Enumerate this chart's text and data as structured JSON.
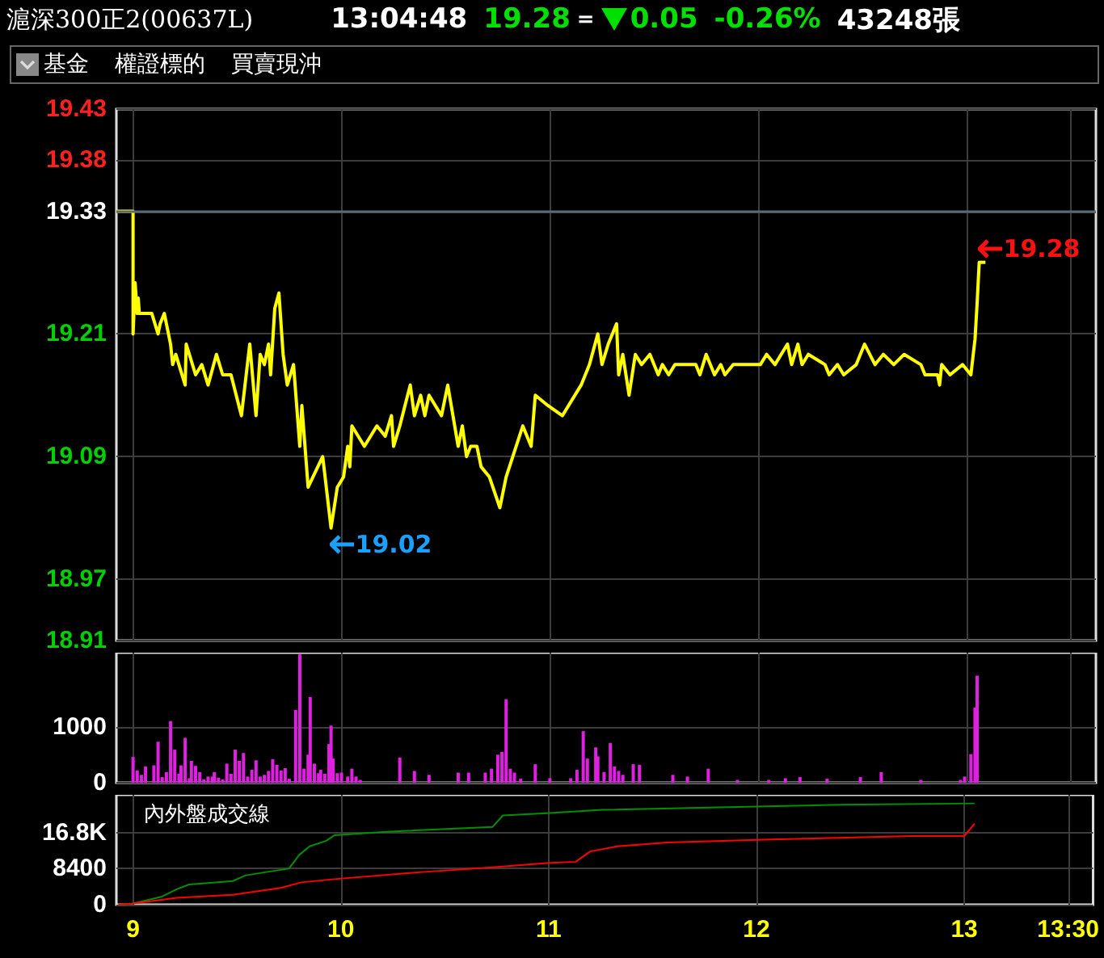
{
  "chart_data": [
    {
      "type": "line",
      "title": "滬深300正2(00637L)",
      "annotations": [
        "13:04:48",
        "19.28",
        "=",
        "0.05",
        "-0.26%",
        "43248張",
        "基金",
        "權證標的",
        "買賣現沖",
        {
          "text": "19.02",
          "x": 9.95,
          "y": 19.02
        },
        {
          "text": "19.28",
          "x": 13.06,
          "y": 19.28
        }
      ],
      "x": [
        8.92,
        9.0,
        9.0,
        9.01,
        9.02,
        9.025,
        9.03,
        9.09,
        9.12,
        9.13,
        9.15,
        9.165,
        9.18,
        9.19,
        9.205,
        9.22,
        9.25,
        9.255,
        9.27,
        9.3,
        9.33,
        9.36,
        9.4,
        9.43,
        9.47,
        9.52,
        9.56,
        9.59,
        9.61,
        9.63,
        9.65,
        9.66,
        9.68,
        9.7,
        9.72,
        9.74,
        9.77,
        9.8,
        9.81,
        9.84,
        9.91,
        9.95,
        9.98,
        10.01,
        10.03,
        10.04,
        10.05,
        10.11,
        10.17,
        10.21,
        10.24,
        10.25,
        10.28,
        10.33,
        10.35,
        10.38,
        10.4,
        10.42,
        10.48,
        10.51,
        10.56,
        10.58,
        10.6,
        10.62,
        10.65,
        10.67,
        10.71,
        10.76,
        10.79,
        10.87,
        10.91,
        10.93,
        10.99,
        11.06,
        11.15,
        11.19,
        11.23,
        11.25,
        11.28,
        11.32,
        11.33,
        11.35,
        11.38,
        11.41,
        11.44,
        11.48,
        11.52,
        11.54,
        11.57,
        11.6,
        11.7,
        11.72,
        11.75,
        11.79,
        11.82,
        11.84,
        11.88,
        12.01,
        12.04,
        12.08,
        12.14,
        12.16,
        12.19,
        12.21,
        12.24,
        12.32,
        12.34,
        12.38,
        12.41,
        12.47,
        12.51,
        12.56,
        12.6,
        12.65,
        12.7,
        12.78,
        12.8,
        12.86,
        12.87,
        12.88,
        12.92,
        12.98,
        13.02,
        13.04,
        13.05,
        13.06,
        13.09
      ],
      "values": [
        19.33,
        19.33,
        19.21,
        19.26,
        19.23,
        19.245,
        19.23,
        19.23,
        19.21,
        19.22,
        19.23,
        19.215,
        19.2,
        19.18,
        19.19,
        19.18,
        19.16,
        19.2,
        19.19,
        19.17,
        19.18,
        19.16,
        19.19,
        19.17,
        19.17,
        19.13,
        19.2,
        19.13,
        19.19,
        19.18,
        19.2,
        19.17,
        19.235,
        19.25,
        19.19,
        19.16,
        19.18,
        19.1,
        19.14,
        19.06,
        19.09,
        19.02,
        19.06,
        19.07,
        19.1,
        19.08,
        19.12,
        19.1,
        19.12,
        19.11,
        19.13,
        19.1,
        19.12,
        19.16,
        19.13,
        19.15,
        19.13,
        19.15,
        19.13,
        19.16,
        19.1,
        19.12,
        19.09,
        19.1,
        19.1,
        19.08,
        19.07,
        19.04,
        19.07,
        19.12,
        19.1,
        19.15,
        19.14,
        19.13,
        19.16,
        19.18,
        19.21,
        19.18,
        19.2,
        19.22,
        19.17,
        19.19,
        19.15,
        19.19,
        19.18,
        19.19,
        19.17,
        19.18,
        19.17,
        19.18,
        19.18,
        19.17,
        19.19,
        19.17,
        19.18,
        19.17,
        19.18,
        19.18,
        19.19,
        19.18,
        19.2,
        19.18,
        19.2,
        19.18,
        19.19,
        19.18,
        19.17,
        19.18,
        19.17,
        19.18,
        19.2,
        19.18,
        19.19,
        19.18,
        19.19,
        19.18,
        19.17,
        19.17,
        19.16,
        19.18,
        19.17,
        19.18,
        19.17,
        19.205,
        19.24,
        19.28,
        19.28
      ],
      "color": "#ffff00",
      "xlim": [
        8.92,
        13.62
      ],
      "xticks": [
        9,
        10,
        11,
        12,
        13,
        13.5
      ],
      "ylim": [
        18.91,
        19.43
      ],
      "yticks": [
        18.91,
        18.97,
        19.09,
        19.21,
        19.33,
        19.38,
        19.43
      ],
      "ref_lines": [
        {
          "axis": "y",
          "value": 19.33,
          "color": "#56687a"
        }
      ],
      "grid": true,
      "tick_labels": "y"
    },
    {
      "type": "bar",
      "x": [
        9.0,
        9.02,
        9.04,
        9.06,
        9.1,
        9.12,
        9.14,
        9.16,
        9.18,
        9.2,
        9.22,
        9.23,
        9.25,
        9.27,
        9.28,
        9.3,
        9.32,
        9.34,
        9.36,
        9.38,
        9.39,
        9.41,
        9.43,
        9.45,
        9.47,
        9.49,
        9.51,
        9.53,
        9.55,
        9.57,
        9.59,
        9.61,
        9.63,
        9.65,
        9.67,
        9.69,
        9.71,
        9.73,
        9.75,
        9.78,
        9.8,
        9.82,
        9.84,
        9.85,
        9.87,
        9.89,
        9.9,
        9.92,
        9.94,
        9.95,
        9.96,
        9.98,
        10.0,
        10.03,
        10.05,
        10.07,
        10.09,
        10.28,
        10.35,
        10.42,
        10.56,
        10.61,
        10.69,
        10.72,
        10.75,
        10.77,
        10.79,
        10.81,
        10.83,
        10.86,
        10.93,
        11.0,
        11.1,
        11.13,
        11.16,
        11.18,
        11.22,
        11.23,
        11.26,
        11.29,
        11.31,
        11.33,
        11.35,
        11.4,
        11.43,
        11.59,
        11.66,
        11.76,
        11.9,
        12.05,
        12.13,
        12.2,
        12.33,
        12.49,
        12.59,
        12.78,
        12.97,
        12.99,
        13.02,
        13.04,
        13.05
      ],
      "values": [
        460,
        220,
        140,
        290,
        310,
        730,
        100,
        190,
        1100,
        590,
        160,
        310,
        800,
        80,
        390,
        300,
        190,
        60,
        110,
        110,
        190,
        90,
        60,
        340,
        160,
        590,
        390,
        530,
        110,
        230,
        400,
        110,
        140,
        210,
        420,
        320,
        220,
        260,
        70,
        1300,
        2290,
        250,
        500,
        1530,
        340,
        170,
        230,
        160,
        690,
        1020,
        430,
        170,
        180,
        110,
        250,
        110,
        50,
        450,
        210,
        140,
        180,
        180,
        180,
        250,
        500,
        550,
        1490,
        250,
        180,
        70,
        330,
        80,
        80,
        230,
        920,
        430,
        630,
        470,
        190,
        710,
        290,
        210,
        140,
        330,
        320,
        140,
        110,
        250,
        50,
        50,
        80,
        100,
        70,
        100,
        190,
        50,
        50,
        110,
        510,
        1340,
        1910
      ],
      "color": "#e020e0",
      "xlim": [
        8.92,
        13.62
      ],
      "xticks": [
        9,
        10,
        11,
        12,
        13,
        13.5
      ],
      "ylim": [
        0,
        2320
      ],
      "yticks": [
        0,
        1000
      ],
      "grid": true,
      "tick_labels": "y"
    },
    {
      "type": "line",
      "title": "內外盤成交線",
      "series": [
        {
          "color": "#009000",
          "x": [
            8.93,
            9.0,
            9.14,
            9.21,
            9.27,
            9.48,
            9.54,
            9.64,
            9.75,
            9.8,
            9.85,
            9.93,
            9.97,
            10.22,
            10.73,
            10.78,
            10.99,
            11.26,
            11.73,
            12.41,
            13.05
          ],
          "values": [
            0,
            300,
            1900,
            3600,
            4700,
            5500,
            6800,
            7600,
            8400,
            11600,
            13600,
            14900,
            16200,
            17000,
            18100,
            20800,
            21300,
            22100,
            22600,
            23300,
            23600
          ]
        },
        {
          "color": "#ff0000",
          "x": [
            8.93,
            9.0,
            9.21,
            9.48,
            9.71,
            9.81,
            9.98,
            10.39,
            10.73,
            10.99,
            11.13,
            11.2,
            11.33,
            11.57,
            12.07,
            12.75,
            13.0,
            13.05
          ],
          "values": [
            0,
            300,
            1600,
            2300,
            3900,
            5200,
            6000,
            7600,
            8700,
            9700,
            10000,
            12400,
            13600,
            14500,
            15200,
            16000,
            16000,
            18900
          ]
        }
      ],
      "xlim": [
        8.92,
        13.62
      ],
      "xticks": [
        9,
        10,
        11,
        12,
        13,
        {
          "value": 13.5,
          "label": "13:30"
        }
      ],
      "ylim": [
        0,
        25600
      ],
      "yticks": [
        0,
        8400,
        {
          "value": 16800,
          "label": "16.8K"
        }
      ],
      "grid": true
    }
  ]
}
